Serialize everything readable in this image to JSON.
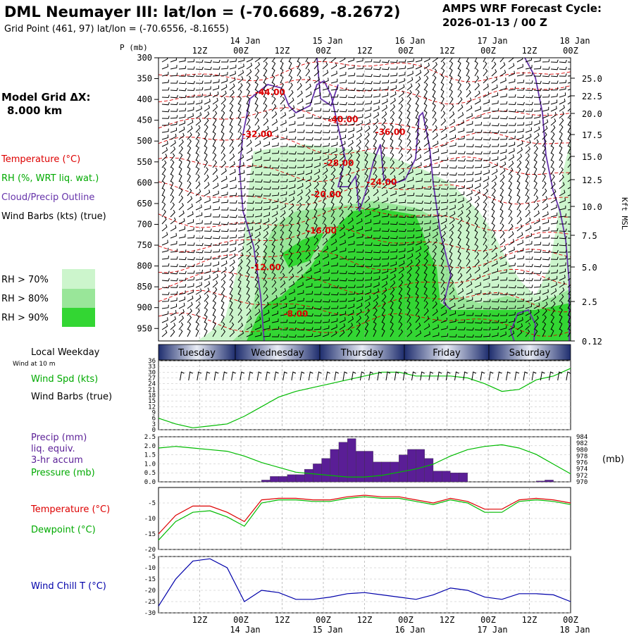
{
  "header": {
    "title": "DML Neumayer III:  lat/lon = (-70.6689, -8.2672)",
    "subtitle": "Grid Point (461, 97) lat/lon = (-70.6556, -8.1655)",
    "forecast_label": "AMPS WRF Forecast Cycle:",
    "forecast_cycle": "2026-01-13 / 00  Z"
  },
  "time_axis": {
    "top_hours": [
      "12Z",
      "00Z",
      "12Z",
      "00Z",
      "12Z",
      "00Z",
      "12Z",
      "00Z",
      "12Z",
      "00Z"
    ],
    "dates": [
      "14 Jan",
      "15 Jan",
      "16 Jan",
      "17 Jan",
      "18 Jan"
    ],
    "weekdays": [
      "Tuesday",
      "Wednesday",
      "Thursday",
      "Friday",
      "Saturday"
    ],
    "weekday_title": "Local Weekday"
  },
  "legend": {
    "grid_title": "Model Grid ΔX:",
    "grid_value": "8.000 km",
    "temperature": "Temperature (°C)",
    "rh": "RH (%, WRT liq. wat.)",
    "cloud": "Cloud/Precip Outline",
    "wind": "Wind Barbs (kts) (true)",
    "rh70": "RH > 70%",
    "rh80": "RH > 80%",
    "rh90": "RH > 90%",
    "wind10": "Wind at 10 m",
    "windspd": "Wind Spd (kts)",
    "windbarbs": "Wind Barbs (true)",
    "precip": "Precip (mm)",
    "liq": "liq. equiv.",
    "accum": "3-hr accum",
    "pressure": "Pressure (mb)",
    "temp2": "Temperature (°C)",
    "dewpoint": "Dewpoint (°C)",
    "windchill": "Wind Chill T (°C)",
    "mb_unit": "(mb)"
  },
  "colors": {
    "rh70": "#ccf5cc",
    "rh80": "#99e699",
    "rh90": "#33d633",
    "temperature": "#dd0000",
    "dewpoint": "#00bb00",
    "cloud": "#6633aa",
    "precip": "#5a1e96",
    "windchill": "#0000aa",
    "weekday_bar": "#2a3a7a"
  },
  "chart_data": [
    {
      "type": "heatmap",
      "name": "cross-section",
      "ylabel_left": "P (mb)",
      "ylabel_right": "Kft MSL",
      "pressure_ticks": [
        "300",
        "350",
        "400",
        "450",
        "500",
        "550",
        "600",
        "650",
        "700",
        "750",
        "800",
        "850",
        "900",
        "950"
      ],
      "height_ticks": [
        "25.0",
        "22.5",
        "20.0",
        "17.5",
        "15.0",
        "12.5",
        "10.0",
        "7.5",
        "5.0",
        "2.5",
        "0.12"
      ],
      "temp_labels": [
        "-44.00",
        "-40.00",
        "-32.00",
        "-36.00",
        "-28.00",
        "-24.00",
        "-20.00",
        "-16.00",
        "-12.00",
        "-8.00"
      ],
      "temp_label_positions": [
        {
          "t": 13.0,
          "p": 390
        },
        {
          "t": 21.5,
          "p": 455
        },
        {
          "t": 11.5,
          "p": 490
        },
        {
          "t": 27.0,
          "p": 485
        },
        {
          "t": 21.0,
          "p": 560
        },
        {
          "t": 26.0,
          "p": 605
        },
        {
          "t": 19.5,
          "p": 635
        },
        {
          "t": 19.0,
          "p": 722
        },
        {
          "t": 12.5,
          "p": 810
        },
        {
          "t": 16.0,
          "p": 922
        }
      ]
    },
    {
      "type": "line",
      "name": "wind-speed",
      "ylim": [
        0,
        36
      ],
      "yticks": [
        "36",
        "33",
        "30",
        "27",
        "24",
        "21",
        "18",
        "15",
        "12",
        "9",
        "6",
        "3",
        "0"
      ],
      "series": [
        {
          "name": "Wind Spd (kts)",
          "x": [
            0,
            2,
            4,
            6,
            8,
            10,
            12,
            14,
            16,
            18,
            20,
            22,
            24,
            26,
            28,
            30,
            32,
            34,
            36,
            38,
            40,
            42,
            44,
            46,
            48
          ],
          "values": [
            6,
            3,
            1,
            2,
            3,
            7,
            12,
            17,
            20,
            22,
            24,
            26,
            28,
            30,
            30,
            28,
            28,
            28,
            27,
            24,
            20,
            21,
            26,
            28,
            32
          ]
        }
      ]
    },
    {
      "type": "bar",
      "name": "precip-pressure",
      "ylim": [
        0,
        2.5
      ],
      "yticks": [
        "2.5",
        "2.0",
        "1.5",
        "1.0",
        "0.5",
        "0.0"
      ],
      "pressure_ticks": [
        "984",
        "982",
        "980",
        "978",
        "976",
        "974",
        "972",
        "970"
      ],
      "precip": {
        "x": [
          12,
          13,
          14,
          15,
          16,
          17,
          18,
          19,
          20,
          21,
          22,
          23,
          24,
          25,
          26,
          27,
          28,
          29,
          30,
          31,
          32,
          33,
          34,
          35,
          36,
          37,
          38,
          39,
          40,
          41,
          42,
          43,
          44,
          45,
          46,
          47,
          48
        ],
        "values": [
          0.1,
          0.3,
          0.3,
          0.4,
          0.4,
          0.7,
          1.0,
          1.3,
          1.8,
          2.2,
          2.4,
          1.7,
          1.7,
          1.1,
          1.1,
          1.1,
          1.5,
          1.8,
          1.8,
          1.3,
          0.6,
          0.6,
          0.5,
          0.5,
          0,
          0,
          0,
          0,
          0,
          0,
          0,
          0,
          0.05,
          0.1,
          0,
          0,
          0
        ]
      },
      "pressure": {
        "x": [
          0,
          2,
          4,
          6,
          8,
          10,
          12,
          14,
          16,
          18,
          20,
          22,
          24,
          26,
          28,
          30,
          32,
          34,
          36,
          38,
          40,
          42,
          44,
          46,
          48
        ],
        "values": [
          980.5,
          981,
          980.5,
          980,
          979.5,
          978,
          976,
          974.5,
          973,
          972.5,
          972,
          971.5,
          971.5,
          972,
          973,
          974,
          975.5,
          978,
          980,
          981,
          981.5,
          980.5,
          978.5,
          975.5,
          972.5
        ]
      }
    },
    {
      "type": "line",
      "name": "temperature-dewpoint",
      "ylim": [
        -20,
        0
      ],
      "yticks": [
        "-5",
        "-10",
        "-15",
        "-20"
      ],
      "series": [
        {
          "name": "Temperature",
          "x": [
            0,
            2,
            4,
            6,
            8,
            10,
            12,
            14,
            16,
            18,
            20,
            22,
            24,
            26,
            28,
            30,
            32,
            34,
            36,
            38,
            40,
            42,
            44,
            46,
            48
          ],
          "values": [
            -15,
            -9,
            -6,
            -6,
            -8,
            -11,
            -4,
            -3.5,
            -3.5,
            -4,
            -4,
            -3,
            -2.5,
            -3,
            -3,
            -4,
            -5,
            -3.5,
            -4.5,
            -7,
            -7,
            -4,
            -3.5,
            -4,
            -5
          ]
        },
        {
          "name": "Dewpoint",
          "x": [
            0,
            2,
            4,
            6,
            8,
            10,
            12,
            14,
            16,
            18,
            20,
            22,
            24,
            26,
            28,
            30,
            32,
            34,
            36,
            38,
            40,
            42,
            44,
            46,
            48
          ],
          "values": [
            -17,
            -11,
            -8,
            -7.5,
            -9.5,
            -12.5,
            -5,
            -4,
            -4,
            -4.5,
            -4.5,
            -3.5,
            -3,
            -3.5,
            -3.5,
            -4.5,
            -5.5,
            -4,
            -5,
            -8,
            -8,
            -4.5,
            -4,
            -4.5,
            -5.5
          ]
        }
      ]
    },
    {
      "type": "line",
      "name": "wind-chill",
      "ylim": [
        -30,
        -5
      ],
      "yticks": [
        "-5",
        "-10",
        "-15",
        "-20",
        "-25",
        "-30"
      ],
      "series": [
        {
          "name": "Wind Chill T",
          "x": [
            0,
            2,
            4,
            6,
            8,
            10,
            12,
            14,
            16,
            18,
            20,
            22,
            24,
            26,
            28,
            30,
            32,
            34,
            36,
            38,
            40,
            42,
            44,
            46,
            48
          ],
          "values": [
            -27,
            -15,
            -7,
            -6,
            -10,
            -25,
            -20,
            -21,
            -24,
            -24,
            -23,
            -21.5,
            -21,
            -22,
            -23,
            -24,
            -22,
            -19,
            -20,
            -23,
            -24,
            -21.5,
            -21.5,
            -22,
            -25
          ]
        }
      ]
    }
  ]
}
